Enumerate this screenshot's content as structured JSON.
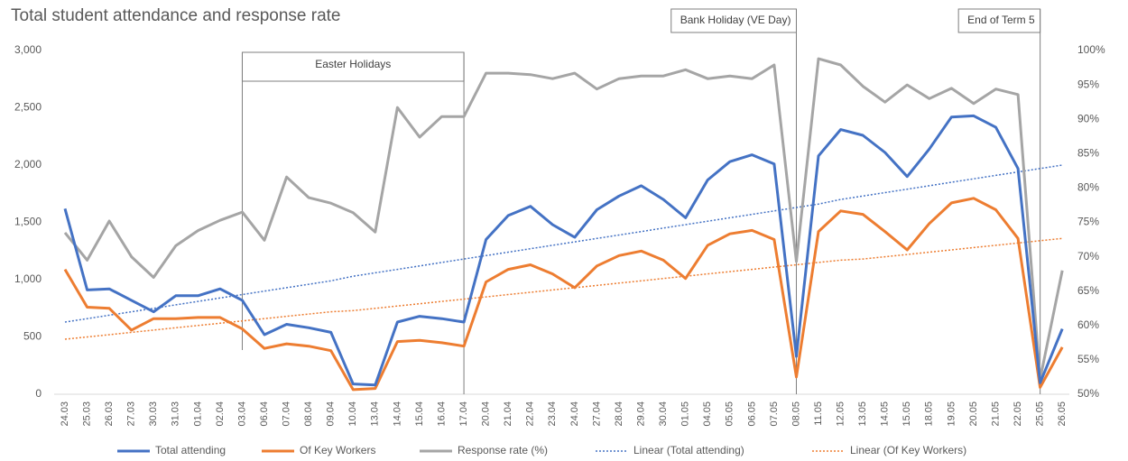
{
  "chart_data": {
    "type": "line",
    "title": "Total student attendance and response rate",
    "categories": [
      "24.03",
      "25.03",
      "26.03",
      "27.03",
      "30.03",
      "31.03",
      "01.04",
      "02.04",
      "03.04",
      "06.04",
      "07.04",
      "08.04",
      "09.04",
      "10.04",
      "13.04",
      "14.04",
      "15.04",
      "16.04",
      "17.04",
      "20.04",
      "21.04",
      "22.04",
      "23.04",
      "24.04",
      "27.04",
      "28.04",
      "29.04",
      "30.04",
      "01.05",
      "04.05",
      "05.05",
      "06.05",
      "07.05",
      "08.05",
      "11.05",
      "12.05",
      "13.05",
      "14.05",
      "15.05",
      "18.05",
      "19.05",
      "20.05",
      "21.05",
      "22.05",
      "25.05",
      "26.05"
    ],
    "series": [
      {
        "name": "Total attending",
        "color": "#4472c4",
        "style": "solid",
        "values": [
          1620,
          910,
          920,
          820,
          720,
          860,
          860,
          920,
          820,
          520,
          610,
          580,
          540,
          90,
          80,
          630,
          680,
          660,
          630,
          1350,
          1560,
          1640,
          1480,
          1370,
          1610,
          1730,
          1820,
          1700,
          1540,
          1870,
          2030,
          2090,
          2010,
          330,
          2080,
          2310,
          2260,
          2110,
          1900,
          2140,
          2420,
          2430,
          2330,
          1970,
          100,
          570
        ]
      },
      {
        "name": "Of Key Workers",
        "color": "#ed7d31",
        "style": "solid",
        "values": [
          1090,
          760,
          750,
          560,
          660,
          660,
          670,
          670,
          570,
          400,
          440,
          420,
          380,
          40,
          50,
          460,
          470,
          450,
          420,
          980,
          1090,
          1130,
          1050,
          930,
          1120,
          1210,
          1250,
          1170,
          1010,
          1300,
          1400,
          1430,
          1350,
          150,
          1420,
          1600,
          1570,
          1420,
          1260,
          1490,
          1670,
          1710,
          1610,
          1360,
          60,
          410
        ]
      },
      {
        "name": "Response rate (%)",
        "color": "#a5a5a5",
        "style": "solid",
        "axis": "y2",
        "values": [
          73.5,
          69.5,
          75.2,
          70,
          67,
          71.6,
          73.8,
          75.3,
          76.5,
          72.4,
          81.6,
          78.6,
          77.8,
          76.4,
          73.6,
          91.7,
          87.4,
          90.4,
          90.4,
          96.7,
          96.7,
          96.5,
          95.9,
          96.7,
          94.4,
          95.9,
          96.3,
          96.3,
          97.2,
          95.9,
          96.3,
          95.9,
          97.9,
          69.3,
          98.8,
          97.9,
          94.8,
          92.5,
          95,
          93,
          94.5,
          92.3,
          94.4,
          93.6,
          52.2,
          68
        ]
      },
      {
        "name": "Linear (Total attending)",
        "color": "#4472c4",
        "style": "dotted",
        "values": [
          630,
          660,
          690,
          720,
          750,
          780,
          810,
          840,
          870,
          900,
          930,
          960,
          990,
          1030,
          1060,
          1090,
          1120,
          1150,
          1180,
          1210,
          1240,
          1270,
          1300,
          1330,
          1360,
          1390,
          1420,
          1450,
          1480,
          1510,
          1540,
          1570,
          1600,
          1630,
          1660,
          1700,
          1730,
          1760,
          1790,
          1820,
          1850,
          1880,
          1910,
          1940,
          1970,
          2000
        ]
      },
      {
        "name": "Linear (Of Key Workers)",
        "color": "#ed7d31",
        "style": "dotted",
        "values": [
          480,
          500,
          520,
          540,
          560,
          580,
          600,
          620,
          640,
          660,
          680,
          700,
          720,
          730,
          750,
          770,
          790,
          810,
          830,
          850,
          870,
          890,
          910,
          930,
          950,
          970,
          990,
          1010,
          1030,
          1050,
          1070,
          1090,
          1110,
          1130,
          1150,
          1170,
          1180,
          1200,
          1220,
          1240,
          1260,
          1280,
          1300,
          1320,
          1340,
          1360
        ]
      }
    ],
    "ylim": [
      0,
      3000
    ],
    "yticks": [
      0,
      500,
      {
        "value": 1000,
        "label": "1,000"
      },
      {
        "value": 1500,
        "label": "1,500"
      },
      {
        "value": 2000,
        "label": "2,000"
      },
      {
        "value": 2500,
        "label": "2,500"
      },
      {
        "value": 3000,
        "label": "3,000"
      }
    ],
    "y2lim": [
      50,
      100
    ],
    "y2ticks": [
      {
        "value": 50,
        "label": "50%"
      },
      {
        "value": 55,
        "label": "55%"
      },
      {
        "value": 60,
        "label": "60%"
      },
      {
        "value": 65,
        "label": "65%"
      },
      {
        "value": 70,
        "label": "70%"
      },
      {
        "value": 75,
        "label": "75%"
      },
      {
        "value": 80,
        "label": "80%"
      },
      {
        "value": 85,
        "label": "85%"
      },
      {
        "value": 90,
        "label": "90%"
      },
      {
        "value": 95,
        "label": "95%"
      },
      {
        "value": 100,
        "label": "100%"
      }
    ],
    "annotations": [
      "Easter Holidays",
      "Bank Holiday (VE Day)",
      "End of Term 5"
    ],
    "legend": "bottom"
  }
}
